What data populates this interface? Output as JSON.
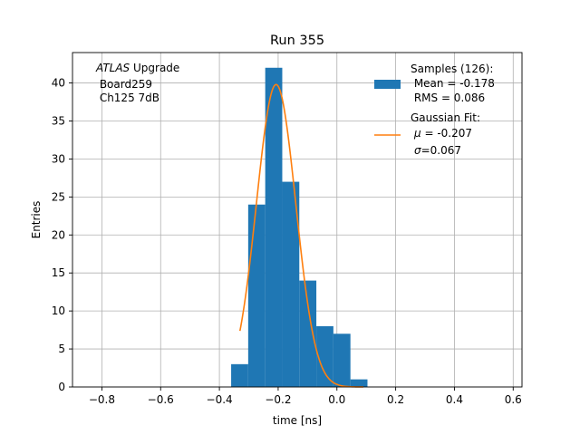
{
  "chart_data": {
    "type": "bar",
    "title": "Run 355",
    "xlabel": "time [ns]",
    "ylabel": "Entries",
    "xlim": [
      -0.9,
      0.63
    ],
    "ylim": [
      0,
      44
    ],
    "xticks": [
      -0.8,
      -0.6,
      -0.4,
      -0.2,
      0.0,
      0.2,
      0.4,
      0.6
    ],
    "xtick_labels": [
      "−0.8",
      "−0.6",
      "−0.4",
      "−0.2",
      "0.0",
      "0.2",
      "0.4",
      "0.6"
    ],
    "yticks": [
      0,
      5,
      10,
      15,
      20,
      25,
      30,
      35,
      40
    ],
    "ytick_labels": [
      "0",
      "5",
      "10",
      "15",
      "20",
      "25",
      "30",
      "35",
      "40"
    ],
    "grid": true,
    "histogram": {
      "bin_edges": [
        -0.36,
        -0.302,
        -0.244,
        -0.186,
        -0.128,
        -0.07,
        -0.012,
        0.046,
        0.104
      ],
      "counts": [
        3,
        24,
        42,
        27,
        14,
        8,
        7,
        1
      ],
      "color": "#1f77b4"
    },
    "fit": {
      "type": "gaussian",
      "mu": -0.207,
      "sigma": 0.067,
      "amplitude": 39.8,
      "x_range": [
        -0.33,
        0.09
      ],
      "color": "#ff7f0e"
    },
    "annotation": {
      "italic": "ATLAS",
      "rest": " Upgrade",
      "line2": " Board259",
      "line3": " Ch125 7dB"
    },
    "legend": {
      "position": "top-right",
      "hist_lines": [
        "Samples (126):",
        " Mean = -0.178",
        " RMS = 0.086"
      ],
      "fit_line1": "Gaussian Fit:",
      "fit_mu_sym": "μ",
      "fit_mu_val": " = -0.207",
      "fit_sigma_sym": "σ",
      "fit_sigma_val": "=0.067"
    }
  }
}
